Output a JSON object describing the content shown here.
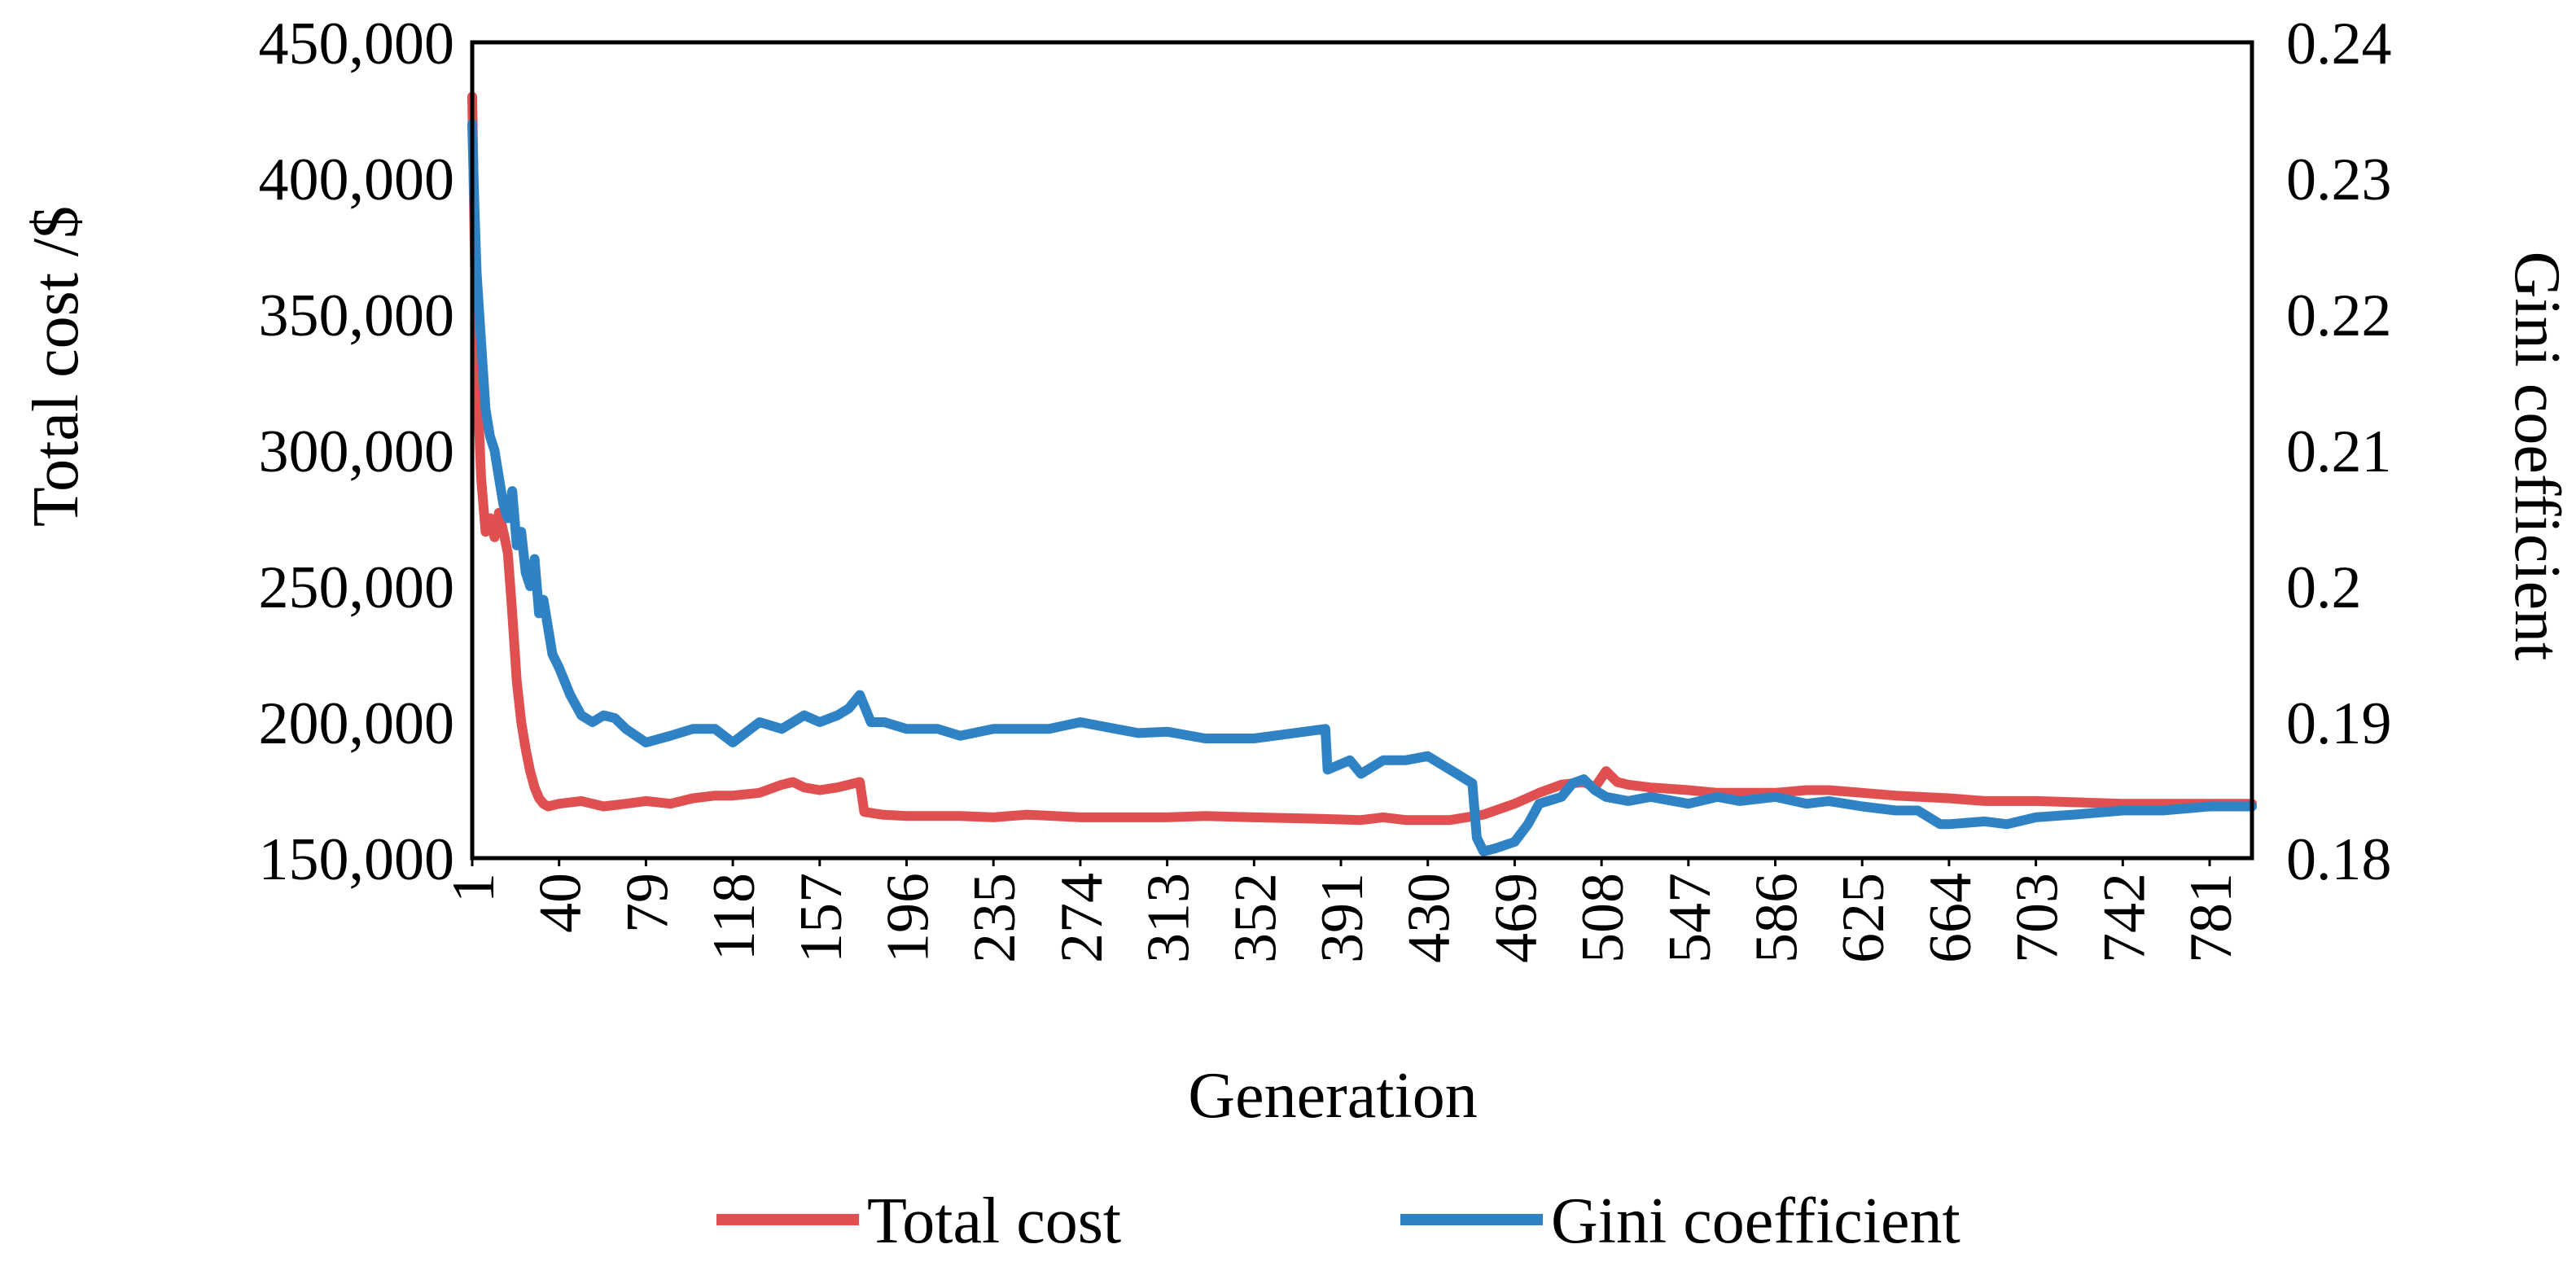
{
  "chart_data": {
    "type": "line",
    "xlabel": "Generation",
    "ylabel_left": "Total cost /$",
    "ylabel_right": "Gini coefficient",
    "x_range": [
      1,
      800
    ],
    "xticks": [
      1,
      40,
      79,
      118,
      157,
      196,
      235,
      274,
      313,
      352,
      391,
      430,
      469,
      508,
      547,
      586,
      625,
      664,
      703,
      742,
      781
    ],
    "ylim_left": [
      150000,
      450000
    ],
    "yticks_left": [
      "150,000",
      "200,000",
      "250,000",
      "300,000",
      "350,000",
      "400,000",
      "450,000"
    ],
    "ylim_right": [
      0.18,
      0.24
    ],
    "yticks_right": [
      "0.18",
      "0.19",
      "0.2",
      "0.21",
      "0.22",
      "0.23",
      "0.24"
    ],
    "legend_position": "bottom-center",
    "series": [
      {
        "name": "Total cost",
        "axis": "left",
        "color": "#E05050",
        "points": [
          [
            1,
            430000
          ],
          [
            2,
            380000
          ],
          [
            3,
            330000
          ],
          [
            5,
            290000
          ],
          [
            7,
            270000
          ],
          [
            9,
            275000
          ],
          [
            11,
            268000
          ],
          [
            13,
            277000
          ],
          [
            15,
            270000
          ],
          [
            17,
            262000
          ],
          [
            19,
            240000
          ],
          [
            21,
            215000
          ],
          [
            23,
            200000
          ],
          [
            25,
            190000
          ],
          [
            27,
            182000
          ],
          [
            29,
            176000
          ],
          [
            31,
            172000
          ],
          [
            33,
            170000
          ],
          [
            35,
            169000
          ],
          [
            40,
            170000
          ],
          [
            50,
            171000
          ],
          [
            60,
            169000
          ],
          [
            70,
            170000
          ],
          [
            79,
            171000
          ],
          [
            90,
            170000
          ],
          [
            100,
            172000
          ],
          [
            110,
            173000
          ],
          [
            118,
            173000
          ],
          [
            130,
            174000
          ],
          [
            140,
            177000
          ],
          [
            145,
            178000
          ],
          [
            150,
            176000
          ],
          [
            157,
            175000
          ],
          [
            165,
            176000
          ],
          [
            175,
            178000
          ],
          [
            177,
            167000
          ],
          [
            185,
            166000
          ],
          [
            196,
            165500
          ],
          [
            220,
            165500
          ],
          [
            235,
            165000
          ],
          [
            250,
            166000
          ],
          [
            274,
            165000
          ],
          [
            300,
            165000
          ],
          [
            313,
            165000
          ],
          [
            330,
            165500
          ],
          [
            352,
            165000
          ],
          [
            380,
            164500
          ],
          [
            400,
            164000
          ],
          [
            410,
            165000
          ],
          [
            420,
            164000
          ],
          [
            440,
            164000
          ],
          [
            455,
            166000
          ],
          [
            469,
            170000
          ],
          [
            480,
            174000
          ],
          [
            490,
            177000
          ],
          [
            500,
            178000
          ],
          [
            505,
            176000
          ],
          [
            510,
            182000
          ],
          [
            515,
            178000
          ],
          [
            520,
            177000
          ],
          [
            530,
            176000
          ],
          [
            547,
            175000
          ],
          [
            560,
            174000
          ],
          [
            586,
            174000
          ],
          [
            600,
            175000
          ],
          [
            610,
            175000
          ],
          [
            625,
            174000
          ],
          [
            640,
            173000
          ],
          [
            664,
            172000
          ],
          [
            680,
            171000
          ],
          [
            703,
            171000
          ],
          [
            742,
            170000
          ],
          [
            781,
            170000
          ],
          [
            800,
            170000
          ]
        ]
      },
      {
        "name": "Gini coefficient",
        "axis": "right",
        "color": "#2F83C5",
        "points": [
          [
            1,
            0.234
          ],
          [
            2,
            0.228
          ],
          [
            3,
            0.223
          ],
          [
            5,
            0.218
          ],
          [
            7,
            0.213
          ],
          [
            9,
            0.211
          ],
          [
            11,
            0.21
          ],
          [
            13,
            0.208
          ],
          [
            15,
            0.206
          ],
          [
            17,
            0.205
          ],
          [
            19,
            0.207
          ],
          [
            21,
            0.203
          ],
          [
            23,
            0.204
          ],
          [
            25,
            0.201
          ],
          [
            27,
            0.2
          ],
          [
            29,
            0.202
          ],
          [
            31,
            0.198
          ],
          [
            33,
            0.199
          ],
          [
            35,
            0.197
          ],
          [
            37,
            0.195
          ],
          [
            40,
            0.194
          ],
          [
            45,
            0.192
          ],
          [
            50,
            0.1905
          ],
          [
            55,
            0.19
          ],
          [
            60,
            0.1905
          ],
          [
            65,
            0.1903
          ],
          [
            70,
            0.1895
          ],
          [
            79,
            0.1885
          ],
          [
            90,
            0.189
          ],
          [
            100,
            0.1895
          ],
          [
            110,
            0.1895
          ],
          [
            118,
            0.1885
          ],
          [
            130,
            0.19
          ],
          [
            140,
            0.1895
          ],
          [
            150,
            0.1905
          ],
          [
            157,
            0.19
          ],
          [
            165,
            0.1905
          ],
          [
            170,
            0.191
          ],
          [
            175,
            0.192
          ],
          [
            180,
            0.19
          ],
          [
            186,
            0.19
          ],
          [
            196,
            0.1895
          ],
          [
            210,
            0.1895
          ],
          [
            220,
            0.189
          ],
          [
            235,
            0.1895
          ],
          [
            250,
            0.1895
          ],
          [
            260,
            0.1895
          ],
          [
            274,
            0.19
          ],
          [
            290,
            0.1895
          ],
          [
            300,
            0.1892
          ],
          [
            313,
            0.1893
          ],
          [
            330,
            0.1888
          ],
          [
            352,
            0.1888
          ],
          [
            370,
            0.1892
          ],
          [
            384,
            0.1895
          ],
          [
            385,
            0.1865
          ],
          [
            395,
            0.1872
          ],
          [
            400,
            0.1862
          ],
          [
            410,
            0.1872
          ],
          [
            420,
            0.1872
          ],
          [
            430,
            0.1875
          ],
          [
            440,
            0.1865
          ],
          [
            450,
            0.1855
          ],
          [
            452,
            0.1815
          ],
          [
            455,
            0.1805
          ],
          [
            460,
            0.1807
          ],
          [
            469,
            0.1812
          ],
          [
            475,
            0.1825
          ],
          [
            480,
            0.184
          ],
          [
            490,
            0.1845
          ],
          [
            495,
            0.1855
          ],
          [
            500,
            0.1858
          ],
          [
            505,
            0.185
          ],
          [
            510,
            0.1845
          ],
          [
            520,
            0.1842
          ],
          [
            530,
            0.1845
          ],
          [
            547,
            0.184
          ],
          [
            560,
            0.1845
          ],
          [
            570,
            0.1842
          ],
          [
            586,
            0.1845
          ],
          [
            600,
            0.184
          ],
          [
            610,
            0.1842
          ],
          [
            625,
            0.1838
          ],
          [
            640,
            0.1835
          ],
          [
            650,
            0.1835
          ],
          [
            660,
            0.1825
          ],
          [
            664,
            0.1825
          ],
          [
            680,
            0.1827
          ],
          [
            690,
            0.1825
          ],
          [
            703,
            0.183
          ],
          [
            720,
            0.1832
          ],
          [
            742,
            0.1835
          ],
          [
            760,
            0.1835
          ],
          [
            781,
            0.1838
          ],
          [
            800,
            0.1838
          ]
        ]
      }
    ]
  }
}
